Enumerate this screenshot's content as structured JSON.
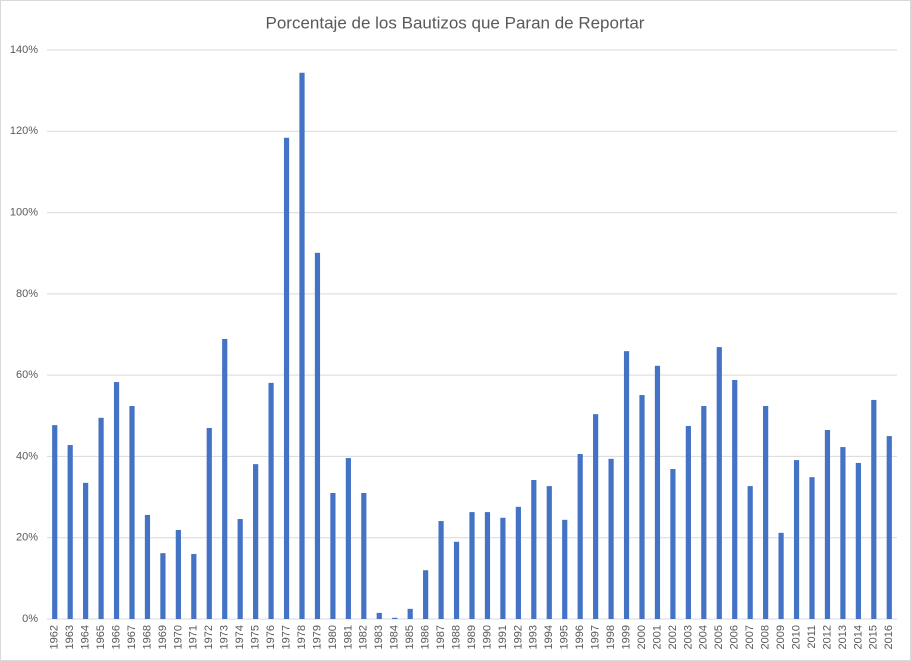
{
  "chart_data": {
    "type": "bar",
    "title": "Porcentaje de los Bautizos que Paran de Reportar",
    "categories": [
      "1962",
      "1963",
      "1964",
      "1965",
      "1966",
      "1967",
      "1968",
      "1969",
      "1970",
      "1971",
      "1972",
      "1973",
      "1974",
      "1975",
      "1976",
      "1977",
      "1978",
      "1979",
      "1980",
      "1981",
      "1982",
      "1983",
      "1984",
      "1985",
      "1986",
      "1987",
      "1988",
      "1989",
      "1990",
      "1991",
      "1992",
      "1993",
      "1994",
      "1995",
      "1996",
      "1997",
      "1998",
      "1999",
      "2000",
      "2001",
      "2002",
      "2003",
      "2004",
      "2005",
      "2006",
      "2007",
      "2008",
      "2009",
      "2010",
      "2011",
      "2012",
      "2013",
      "2014",
      "2015",
      "2016"
    ],
    "values": [
      47.7,
      42.8,
      33.5,
      49.5,
      58.3,
      52.4,
      25.6,
      16.2,
      21.9,
      16,
      47,
      68.9,
      24.6,
      38.1,
      58.1,
      118.4,
      134.4,
      90.1,
      31,
      39.6,
      31,
      1.5,
      0.3,
      2.5,
      12,
      24.1,
      19,
      26.3,
      26.3,
      24.9,
      27.6,
      34.2,
      32.7,
      24.4,
      40.6,
      50.4,
      39.4,
      65.9,
      55.1,
      62.3,
      36.9,
      47.5,
      52.4,
      66.9,
      58.8,
      32.7,
      52.4,
      21.2,
      39.1,
      34.9,
      46.5,
      42.3,
      38.4,
      53.9,
      45
    ],
    "color": "#4472c4",
    "ylim": [
      0,
      140
    ],
    "yticks": [
      {
        "value": 0,
        "label": "0%"
      },
      {
        "value": 20,
        "label": "20%"
      },
      {
        "value": 40,
        "label": "40%"
      },
      {
        "value": 60,
        "label": "60%"
      },
      {
        "value": 80,
        "label": "80%"
      },
      {
        "value": 100,
        "label": "100%"
      },
      {
        "value": 120,
        "label": "120%"
      },
      {
        "value": 140,
        "label": "140%"
      }
    ],
    "grid": true
  }
}
